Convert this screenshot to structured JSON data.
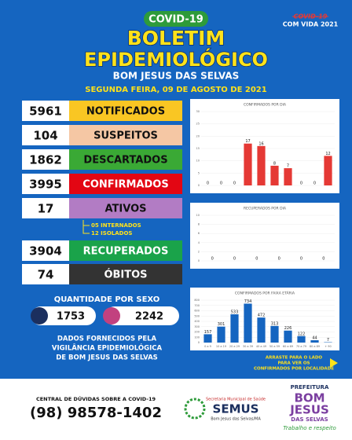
{
  "header": {
    "badge": "COVID-19",
    "title_line1": "BOLETIM",
    "title_line2": "EPIDEMIOLÓGICO",
    "place": "BOM JESUS DAS SELVAS",
    "date": "SEGUNDA FEIRA, 09 DE AGOSTO DE 2021",
    "corner_struck": "COVID-19",
    "corner": "COM VIDA 2021"
  },
  "stats": [
    {
      "value": "5961",
      "label": "NOTIFICADOS",
      "color": "#f9c623",
      "text_color": "#111111"
    },
    {
      "value": "104",
      "label": "SUSPEITOS",
      "color": "#f5c7a4",
      "text_color": "#111111"
    },
    {
      "value": "1862",
      "label": "DESCARTADOS",
      "color": "#3aa935",
      "text_color": "#111111"
    },
    {
      "value": "3995",
      "label": "CONFIRMADOS",
      "color": "#e30613",
      "text_color": "#ffffff"
    },
    {
      "value": "17",
      "label": "ATIVOS",
      "color": "#b27cc4",
      "text_color": "#111111"
    },
    {
      "value": "3904",
      "label": "RECUPERADOS",
      "color": "#1aa34a",
      "text_color": "#ffffff"
    },
    {
      "value": "74",
      "label": "ÓBITOS",
      "color": "#333333",
      "text_color": "#ffffff"
    }
  ],
  "ativos_detail": [
    "05 INTERNADOS",
    "12 ISOLADOS"
  ],
  "sex": {
    "title": "QUANTIDADE POR SEXO",
    "male": "1753",
    "female": "2242"
  },
  "source": [
    "DADOS FORNECIDOS PELA",
    "VIGILÂNCIA EPIDEMIOLÓGICA",
    "DE BOM JESUS DAS SELVAS"
  ],
  "swipe": [
    "ARRASTE PARA O LADO",
    "PARA VER OS",
    "CONFIRMADOS POR LOCALIDADE"
  ],
  "charts": [
    {
      "type": "bar",
      "title": "CONFIRMADOS POR DIA",
      "color": "#e53935",
      "categories": [
        null,
        null,
        null,
        null,
        null,
        null,
        null,
        null,
        null,
        null
      ],
      "values": [
        0,
        0,
        0,
        17,
        16,
        8,
        7,
        0,
        0,
        12
      ],
      "ylim": [
        0,
        30
      ],
      "yticks": [
        0,
        5,
        10,
        15,
        20,
        25,
        30
      ]
    },
    {
      "type": "bar",
      "title": "RECUPERADOS POR DIA",
      "color": "#43a047",
      "categories": [
        null,
        null,
        null,
        null,
        null,
        null
      ],
      "values": [
        0,
        0,
        0,
        0,
        0,
        0
      ],
      "ylim": [
        0,
        10
      ],
      "yticks": [
        0,
        2,
        4,
        6,
        8,
        10
      ]
    },
    {
      "type": "bar",
      "title": "CONFIRMADOS POR FAIXA ETÁRIA",
      "color": "#1565c0",
      "categories": [
        "0 a 9",
        "10 a 19",
        "20 a 29",
        "30 a 39",
        "40 a 49",
        "50 a 59",
        "60 a 69",
        "70 a 79",
        "80 a 89",
        "+ 90"
      ],
      "values": [
        157,
        301,
        533,
        734,
        472,
        313,
        226,
        122,
        44,
        7
      ],
      "ylim": [
        0,
        800
      ],
      "yticks": [
        0,
        100,
        200,
        300,
        400,
        500,
        600,
        700,
        800
      ]
    }
  ],
  "footer": {
    "help_title": "CENTRAL DE DÚVIDAS SOBRE A COVID-19",
    "phone": "(98) 98578-1402",
    "semus_top": "Secretaria Municipal de Saúde",
    "semus": "SEMUS",
    "semus_bottom": "Bom Jesus das Selvas/MA",
    "pref": "PREFEITURA",
    "bom": "BOM",
    "jesus": "JESUS",
    "selvas": "DAS SELVAS",
    "slogan": "Trabalho e respeito"
  }
}
